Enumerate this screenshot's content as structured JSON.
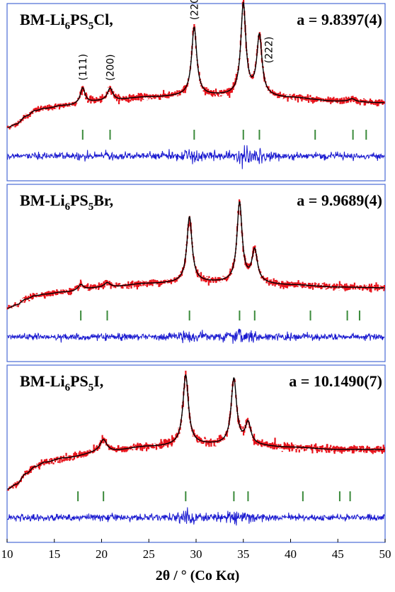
{
  "colors": {
    "observed": "#e8141c",
    "calculated": "#000000",
    "bragg": "#3a8a3a",
    "difference": "#1a1ad0",
    "frame": "#4a6bd6"
  },
  "chart_data": {
    "type": "line",
    "xlabel": "2θ / ° (Co Kα)",
    "xlim": [
      10,
      50
    ],
    "xticks": [
      10,
      15,
      20,
      25,
      30,
      35,
      40,
      45,
      50
    ],
    "series_names": [
      "observed",
      "calculated",
      "Bragg positions",
      "difference"
    ],
    "panels": [
      {
        "label_prefix": "BM-Li",
        "sub1": "6",
        "mid": "PS",
        "sub2": "5",
        "label_suffix": "Cl,",
        "parameter": "a = 9.8397(4)",
        "hkl_labels": [
          {
            "text": "(111)",
            "x": 18.0
          },
          {
            "text": "(200)",
            "x": 20.9
          },
          {
            "text": "(220)",
            "x": 29.8
          },
          {
            "text": "(311)",
            "x": 35.0
          },
          {
            "text": "(222)",
            "x": 36.7
          }
        ],
        "baseline": [
          [
            10,
            0.0
          ],
          [
            11,
            0.05
          ],
          [
            12,
            0.16
          ],
          [
            13,
            0.24
          ],
          [
            14,
            0.27
          ],
          [
            16,
            0.31
          ],
          [
            20,
            0.37
          ],
          [
            25,
            0.43
          ],
          [
            30,
            0.45
          ],
          [
            35,
            0.45
          ],
          [
            40,
            0.42
          ],
          [
            45,
            0.37
          ],
          [
            50,
            0.35
          ]
        ],
        "peaks": [
          {
            "x": 18.0,
            "height": 0.22,
            "width": 0.3
          },
          {
            "x": 20.9,
            "height": 0.18,
            "width": 0.35
          },
          {
            "x": 29.8,
            "height": 0.96,
            "width": 0.33
          },
          {
            "x": 35.0,
            "height": 1.28,
            "width": 0.32
          },
          {
            "x": 36.7,
            "height": 0.84,
            "width": 0.33
          },
          {
            "x": 46.5,
            "height": 0.04,
            "width": 0.4
          }
        ],
        "bragg_positions": [
          18.0,
          20.9,
          29.8,
          35.0,
          36.7,
          42.6,
          46.6,
          48.0
        ]
      },
      {
        "label_prefix": "BM-Li",
        "sub1": "6",
        "mid": "PS",
        "sub2": "5",
        "label_suffix": "Br,",
        "parameter": "a = 9.9689(4)",
        "hkl_labels": [],
        "baseline": [
          [
            10,
            0.0
          ],
          [
            11,
            0.05
          ],
          [
            12,
            0.13
          ],
          [
            13,
            0.18
          ],
          [
            14,
            0.2
          ],
          [
            16,
            0.23
          ],
          [
            20,
            0.29
          ],
          [
            25,
            0.35
          ],
          [
            30,
            0.37
          ],
          [
            35,
            0.36
          ],
          [
            40,
            0.33
          ],
          [
            45,
            0.3
          ],
          [
            50,
            0.29
          ]
        ],
        "peaks": [
          {
            "x": 17.8,
            "height": 0.08,
            "width": 0.35
          },
          {
            "x": 20.6,
            "height": 0.07,
            "width": 0.4
          },
          {
            "x": 29.3,
            "height": 0.92,
            "width": 0.33
          },
          {
            "x": 34.6,
            "height": 1.12,
            "width": 0.33
          },
          {
            "x": 36.2,
            "height": 0.45,
            "width": 0.35
          }
        ],
        "bragg_positions": [
          17.8,
          20.6,
          29.3,
          34.6,
          36.2,
          42.1,
          46.0,
          47.3
        ]
      },
      {
        "label_prefix": "BM-Li",
        "sub1": "6",
        "mid": "PS",
        "sub2": "5",
        "label_suffix": "I,",
        "parameter": "a = 10.1490(7)",
        "hkl_labels": [],
        "baseline": [
          [
            10,
            0.0
          ],
          [
            11,
            0.07
          ],
          [
            12,
            0.22
          ],
          [
            13,
            0.32
          ],
          [
            14,
            0.38
          ],
          [
            16,
            0.44
          ],
          [
            20,
            0.52
          ],
          [
            25,
            0.6
          ],
          [
            30,
            0.63
          ],
          [
            35,
            0.62
          ],
          [
            40,
            0.59
          ],
          [
            45,
            0.56
          ],
          [
            50,
            0.56
          ]
        ],
        "peaks": [
          {
            "x": 20.2,
            "height": 0.18,
            "width": 0.45
          },
          {
            "x": 28.9,
            "height": 0.98,
            "width": 0.35
          },
          {
            "x": 34.0,
            "height": 0.93,
            "width": 0.35
          },
          {
            "x": 35.5,
            "height": 0.3,
            "width": 0.35
          }
        ],
        "bragg_positions": [
          17.5,
          20.2,
          28.9,
          34.0,
          35.5,
          41.3,
          45.2,
          46.3
        ]
      }
    ]
  }
}
